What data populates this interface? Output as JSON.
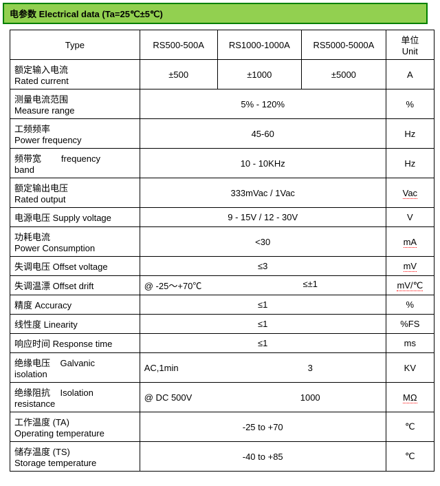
{
  "header": {
    "title": "电参数  Electrical data (Ta=25℃±5℃)"
  },
  "columns": {
    "type": "Type",
    "m1": "RS500-500A",
    "m2": "RS1000-1000A",
    "m3": "RS5000-5000A",
    "unit_cn": "单位",
    "unit_en": "Unit"
  },
  "rows": {
    "rated_current": {
      "label_cn": "额定输入电流",
      "label_en": "Rated current",
      "v1": "±500",
      "v2": "±1000",
      "v3": "±5000",
      "unit": "A"
    },
    "measure_range": {
      "label_cn": "测量电流范围",
      "label_en": "Measure range",
      "value": "5% - 120%",
      "unit": "%"
    },
    "power_freq": {
      "label_cn": "工频频率",
      "label_en": "Power frequency",
      "value": "45-60",
      "unit": "Hz"
    },
    "freq_band": {
      "label_cn": "频带宽",
      "label_mid": "frequency",
      "label_en2": "band",
      "value": "10 - 10KHz",
      "unit": "Hz"
    },
    "rated_output": {
      "label_cn": "额定输出电压",
      "label_en": "Rated output",
      "value": "333mVac / 1Vac",
      "unit": "Vac"
    },
    "supply_voltage": {
      "label": "电源电压   Supply voltage",
      "value": "9 - 15V / 12 - 30V",
      "unit": "V"
    },
    "power_cons": {
      "label_cn": "功耗电流",
      "label_en": "Power Consumption",
      "value": "<30",
      "unit": "mA"
    },
    "offset_voltage": {
      "label": "失调电压   Offset voltage",
      "value": "≤3",
      "unit": "mV"
    },
    "offset_drift": {
      "label": "失调温漂   Offset drift",
      "prefix": "@ -25～+70℃",
      "value": "≤±1",
      "unit": "mV/℃"
    },
    "accuracy": {
      "label": "精度          Accuracy",
      "value": "≤1",
      "unit": "%"
    },
    "linearity": {
      "label": "线性度       Linearity",
      "value": "≤1",
      "unit": "%FS"
    },
    "response_time": {
      "label": "响应时间   Response time",
      "value": "≤1",
      "unit": "ms"
    },
    "galvanic": {
      "label_cn": "绝缘电压",
      "label_mid": "Galvanic",
      "label_en2": "isolation",
      "prefix": "AC,1min",
      "value": "3",
      "unit": "KV"
    },
    "isolation_res": {
      "label_cn": "绝缘阻抗",
      "label_mid": "Isolation",
      "label_en2": "resistance",
      "prefix": "@ DC 500V",
      "value": "1000",
      "unit": "MΩ"
    },
    "op_temp": {
      "label_cn": "工作温度 (TA)",
      "label_en": "Operating temperature",
      "value": "-25 to +70",
      "unit": "℃"
    },
    "storage_temp": {
      "label_cn": "储存温度 (TS)",
      "label_en": "Storage temperature",
      "value": "-40 to +85",
      "unit": "℃"
    }
  }
}
